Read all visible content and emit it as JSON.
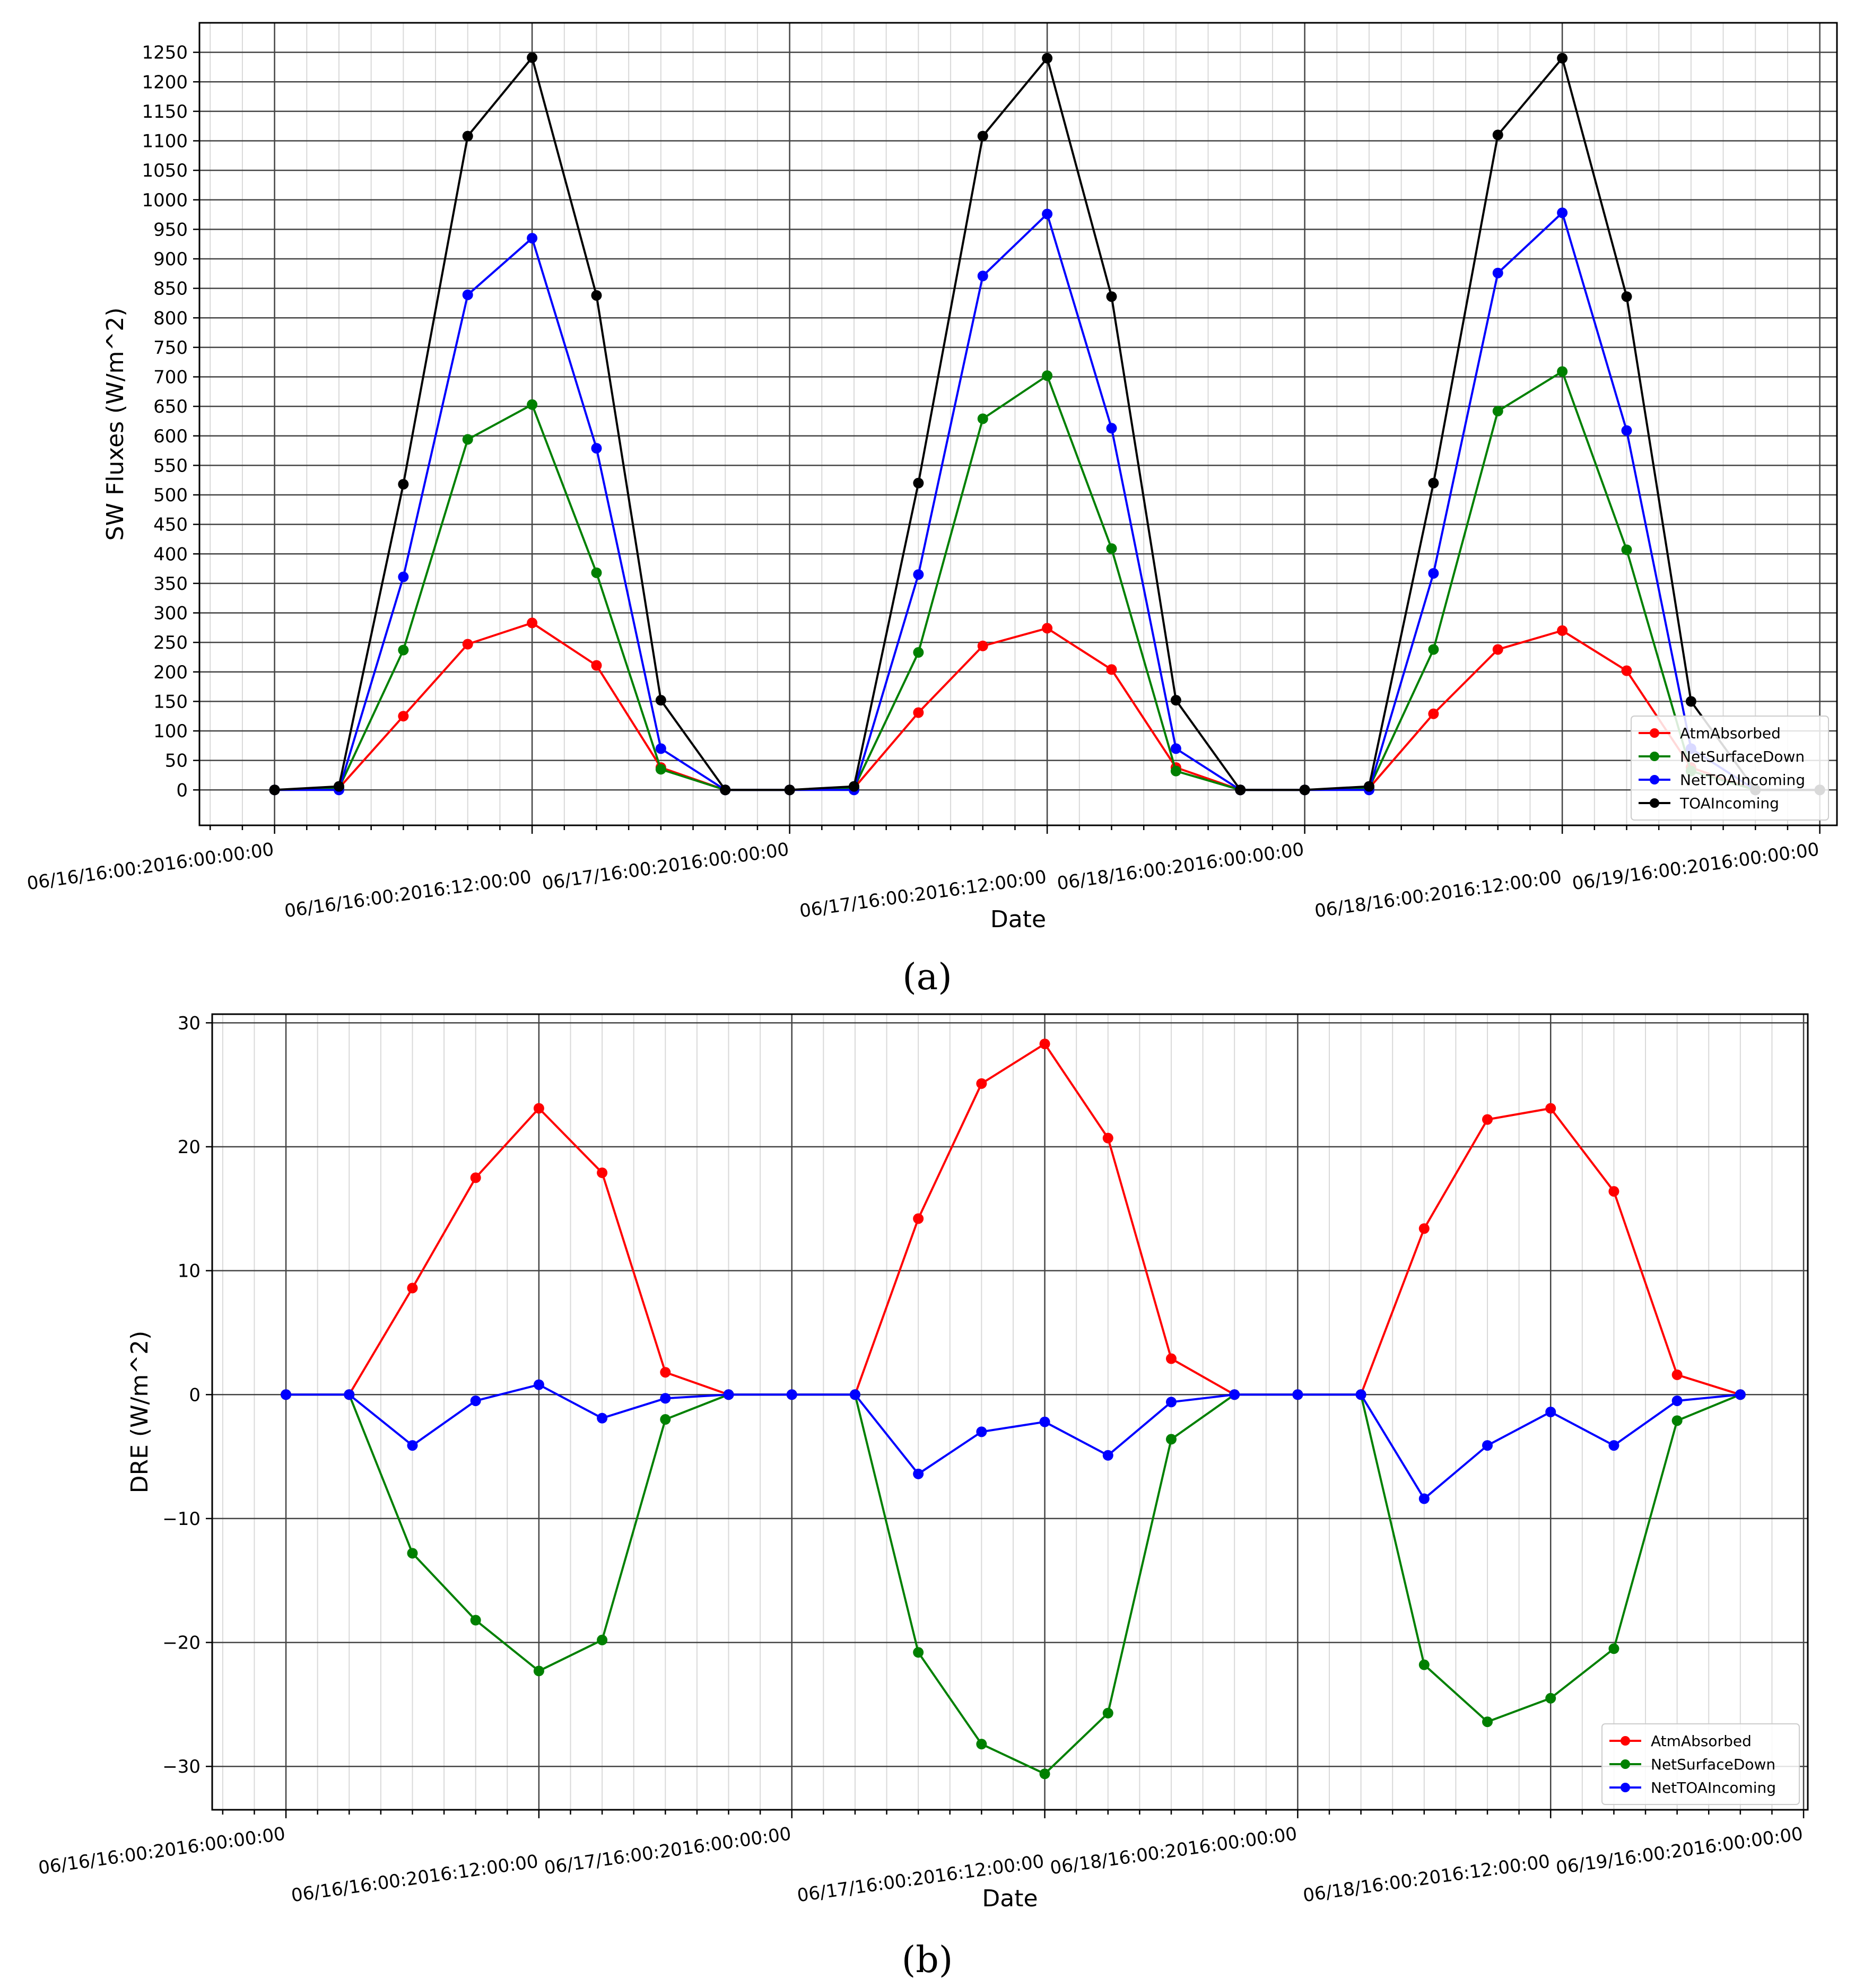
{
  "chart_data": [
    {
      "type": "line",
      "caption": "(a)",
      "title": "",
      "xlabel": "Date",
      "ylabel": "SW Fluxes (W/m^2)",
      "ylim": [
        -60,
        1300
      ],
      "y_ticks": [
        0,
        50,
        100,
        150,
        200,
        250,
        300,
        350,
        400,
        450,
        500,
        550,
        600,
        650,
        700,
        750,
        800,
        850,
        900,
        950,
        1000,
        1050,
        1100,
        1150,
        1200,
        1250
      ],
      "x_hours": [
        0,
        3,
        6,
        9,
        12,
        15,
        18,
        21,
        24,
        27,
        30,
        33,
        36,
        39,
        42,
        45,
        48,
        51,
        54,
        57,
        60,
        63,
        66,
        69,
        72
      ],
      "xlim_hours": [
        -3.5,
        72.8
      ],
      "x_tick_hours": [
        0,
        12,
        24,
        36,
        48,
        60,
        72
      ],
      "x_tick_labels": [
        "06/16/16:00:2016:00:00:00",
        "06/16/16:00:2016:12:00:00",
        "06/17/16:00:2016:00:00:00",
        "06/17/16:00:2016:12:00:00",
        "06/18/16:00:2016:00:00:00",
        "06/18/16:00:2016:12:00:00",
        "06/19/16:00:2016:00:00:00"
      ],
      "grid": true,
      "legend_position": "lower-right",
      "series": [
        {
          "name": "AtmAbsorbed",
          "color": "#ff0000",
          "values": [
            0,
            3,
            125,
            247,
            283,
            211,
            38,
            0,
            0,
            3,
            131,
            244,
            274,
            204,
            38,
            0,
            0,
            3,
            129,
            238,
            270,
            202,
            38,
            0,
            0
          ]
        },
        {
          "name": "NetSurfaceDown",
          "color": "#008000",
          "values": [
            0,
            3,
            237,
            594,
            653,
            368,
            35,
            0,
            0,
            3,
            233,
            629,
            702,
            409,
            32,
            0,
            0,
            3,
            238,
            642,
            709,
            407,
            32,
            0,
            0
          ]
        },
        {
          "name": "NetTOAIncoming",
          "color": "#0000ff",
          "values": [
            0,
            0,
            361,
            839,
            935,
            579,
            70,
            0,
            0,
            0,
            365,
            871,
            976,
            613,
            70,
            0,
            0,
            0,
            367,
            876,
            978,
            609,
            70,
            0,
            0
          ]
        },
        {
          "name": "TOAIncoming",
          "color": "#000000",
          "values": [
            0,
            6,
            518,
            1108,
            1241,
            838,
            152,
            0,
            0,
            6,
            520,
            1108,
            1240,
            836,
            152,
            0,
            0,
            6,
            520,
            1110,
            1240,
            836,
            150,
            0,
            0
          ]
        }
      ]
    },
    {
      "type": "line",
      "caption": "(b)",
      "title": "",
      "xlabel": "Date",
      "ylabel": "DRE (W/m^2)",
      "ylim": [
        -33.5,
        30.7
      ],
      "y_ticks": [
        -30,
        -20,
        -10,
        0,
        10,
        20,
        30
      ],
      "y_tick_labels": [
        "−30",
        "−20",
        "−10",
        "0",
        "10",
        "20",
        "30"
      ],
      "x_hours": [
        0,
        3,
        6,
        9,
        12,
        15,
        18,
        21,
        24,
        27,
        30,
        33,
        36,
        39,
        42,
        45,
        48,
        51,
        54,
        57,
        60,
        63,
        66,
        69
      ],
      "xlim_hours": [
        -3.5,
        72.2
      ],
      "x_tick_hours": [
        0,
        12,
        24,
        36,
        48,
        60,
        72
      ],
      "x_tick_labels": [
        "06/16/16:00:2016:00:00:00",
        "06/16/16:00:2016:12:00:00",
        "06/17/16:00:2016:00:00:00",
        "06/17/16:00:2016:12:00:00",
        "06/18/16:00:2016:00:00:00",
        "06/18/16:00:2016:12:00:00",
        "06/19/16:00:2016:00:00:00"
      ],
      "grid": true,
      "legend_position": "lower-right",
      "series": [
        {
          "name": "AtmAbsorbed",
          "color": "#ff0000",
          "values": [
            0,
            0,
            8.6,
            17.5,
            23.1,
            17.9,
            1.8,
            0,
            0,
            0,
            14.2,
            25.1,
            28.3,
            20.7,
            2.9,
            0,
            0,
            0,
            13.4,
            22.2,
            23.1,
            16.4,
            1.6,
            0
          ]
        },
        {
          "name": "NetSurfaceDown",
          "color": "#008000",
          "values": [
            0,
            0,
            -12.8,
            -18.2,
            -22.3,
            -19.8,
            -2.0,
            0,
            0,
            0,
            -20.8,
            -28.2,
            -30.6,
            -25.7,
            -3.6,
            0,
            0,
            0,
            -21.8,
            -26.4,
            -24.5,
            -20.5,
            -2.1,
            0
          ]
        },
        {
          "name": "NetTOAIncoming",
          "color": "#0000ff",
          "values": [
            0,
            0,
            -4.1,
            -0.5,
            0.8,
            -1.9,
            -0.3,
            0,
            0,
            0,
            -6.4,
            -3.0,
            -2.2,
            -4.9,
            -0.6,
            0,
            0,
            0,
            -8.4,
            -4.1,
            -1.4,
            -4.1,
            -0.5,
            0
          ]
        }
      ]
    }
  ]
}
